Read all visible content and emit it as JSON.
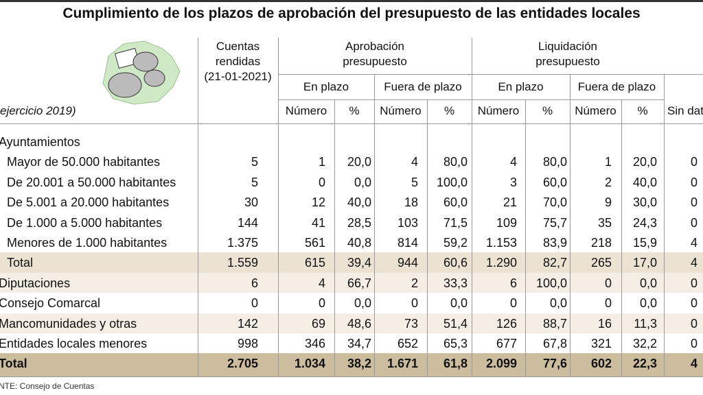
{
  "title": "Cumplimiento de los plazos de aprobación del presupuesto de las entidades locales",
  "period": "ejercicio 2019)",
  "header": {
    "cuentas": [
      "Cuentas",
      "rendidas",
      "(21-01-2021)"
    ],
    "aprobacion": [
      "Aprobación",
      "presupuesto"
    ],
    "liquidacion": [
      "Liquidación",
      "presupuesto"
    ],
    "groups": [
      "En plazo",
      "Fuera de plazo",
      "En plazo",
      "Fuera de plazo"
    ],
    "sub": [
      "Número",
      "%",
      "Número",
      "%",
      "Número",
      "%",
      "Número",
      "%",
      "Sin dat"
    ]
  },
  "rows": [
    {
      "label": "Ayuntamientos"
    },
    {
      "label": "Mayor de 50.000 habitantes",
      "cells": [
        "5",
        "1",
        "20,0",
        "4",
        "80,0",
        "4",
        "80,0",
        "1",
        "20,0",
        "0"
      ]
    },
    {
      "label": "De 20.001 a 50.000 habitantes",
      "cells": [
        "5",
        "0",
        "0,0",
        "5",
        "100,0",
        "3",
        "60,0",
        "2",
        "40,0",
        "0"
      ]
    },
    {
      "label": "De 5.001 a 20.000 habitantes",
      "cells": [
        "30",
        "12",
        "40,0",
        "18",
        "60,0",
        "21",
        "70,0",
        "9",
        "30,0",
        "0"
      ]
    },
    {
      "label": "De 1.000 a 5.000 habitantes",
      "cells": [
        "144",
        "41",
        "28,5",
        "103",
        "71,5",
        "109",
        "75,7",
        "35",
        "24,3",
        "0"
      ]
    },
    {
      "label": "Menores de 1.000 habitantes",
      "cells": [
        "1.375",
        "561",
        "40,8",
        "814",
        "59,2",
        "1.153",
        "83,9",
        "218",
        "15,9",
        "4"
      ]
    },
    {
      "label": "Total",
      "cells": [
        "1.559",
        "615",
        "39,4",
        "944",
        "60,6",
        "1.290",
        "82,7",
        "265",
        "17,0",
        "4"
      ]
    },
    {
      "label": "Diputaciones",
      "cells": [
        "6",
        "4",
        "66,7",
        "2",
        "33,3",
        "6",
        "100,0",
        "0",
        "0,0",
        "0"
      ]
    },
    {
      "label": "Consejo Comarcal",
      "cells": [
        "0",
        "0",
        "0,0",
        "0",
        "0,0",
        "0",
        "0,0",
        "0",
        "0,0",
        "0"
      ]
    },
    {
      "label": "Mancomunidades y otras",
      "cells": [
        "142",
        "69",
        "48,6",
        "73",
        "51,4",
        "126",
        "88,7",
        "16",
        "11,3",
        "0"
      ]
    },
    {
      "label": "Entidades locales menores",
      "cells": [
        "998",
        "346",
        "34,7",
        "652",
        "65,3",
        "677",
        "67,8",
        "321",
        "32,2",
        "0"
      ]
    },
    {
      "label": "Total",
      "cells": [
        "2.705",
        "1.034",
        "38,2",
        "1.671",
        "61,8",
        "2.099",
        "77,6",
        "602",
        "22,3",
        "4"
      ]
    }
  ],
  "source": "NTE: Consejo de Cuentas"
}
